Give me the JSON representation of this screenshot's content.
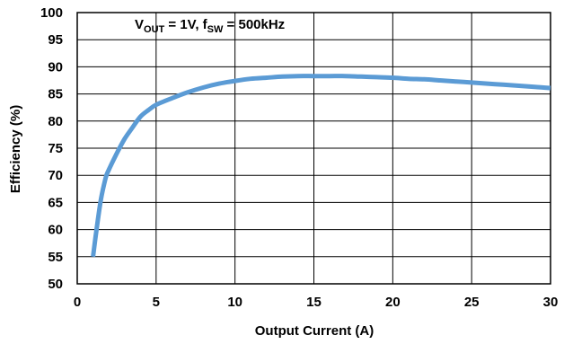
{
  "chart_data": {
    "type": "line",
    "title": "",
    "xlabel": "Output Current (A)",
    "ylabel": "Efficiency (%)",
    "xlim": [
      0,
      30
    ],
    "ylim": [
      50,
      100
    ],
    "xticks": [
      0,
      5,
      10,
      15,
      20,
      25,
      30
    ],
    "yticks": [
      50,
      55,
      60,
      65,
      70,
      75,
      80,
      85,
      90,
      95,
      100
    ],
    "grid": true,
    "annotation": {
      "v": "V",
      "v_sub": "OUT",
      "mid": " = 1V, f",
      "f_sub": "SW",
      "end": " = 500kHz"
    },
    "series": [
      {
        "color": "#5b9bd5",
        "x": [
          1.0,
          1.2,
          1.5,
          1.8,
          2.0,
          2.5,
          3.0,
          3.5,
          4.0,
          4.5,
          5.0,
          6.0,
          7.0,
          8.0,
          9.0,
          10.0,
          11.0,
          12.0,
          13.0,
          14.0,
          15.0,
          16.0,
          17.0,
          18.0,
          19.0,
          20.0,
          21.0,
          22.0,
          23.0,
          24.0,
          25.0,
          26.0,
          27.0,
          28.0,
          29.0,
          30.0
        ],
        "y": [
          55.0,
          59.5,
          65.5,
          69.5,
          71.0,
          74.0,
          76.7,
          78.8,
          80.8,
          82.0,
          83.0,
          84.2,
          85.3,
          86.2,
          86.9,
          87.4,
          87.8,
          88.0,
          88.2,
          88.3,
          88.3,
          88.3,
          88.3,
          88.2,
          88.1,
          88.0,
          87.8,
          87.7,
          87.5,
          87.3,
          87.1,
          86.9,
          86.7,
          86.5,
          86.3,
          86.1
        ]
      }
    ]
  }
}
